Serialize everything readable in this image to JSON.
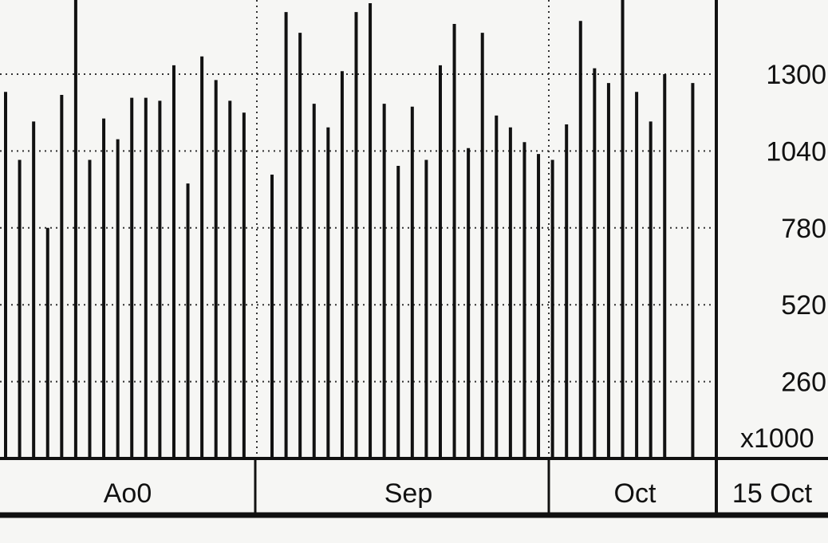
{
  "chart_data": {
    "type": "bar",
    "ylim": [
      0,
      1560
    ],
    "yticks": [
      {
        "value": 1300,
        "label": "1300"
      },
      {
        "value": 1040,
        "label": "1040"
      },
      {
        "value": 780,
        "label": "780"
      },
      {
        "value": 520,
        "label": "520"
      },
      {
        "value": 260,
        "label": "260"
      }
    ],
    "unit_label": "x1000",
    "values": [
      1240,
      1010,
      1140,
      780,
      1230,
      1560,
      1010,
      1150,
      1080,
      1220,
      1220,
      1210,
      1330,
      930,
      1360,
      1280,
      1210,
      1170,
      0,
      960,
      1510,
      1440,
      1200,
      1120,
      1310,
      1510,
      1540,
      1200,
      990,
      1190,
      1010,
      1330,
      1470,
      1050,
      1440,
      1160,
      1120,
      1070,
      1030,
      1010,
      1130,
      1480,
      1320,
      1270,
      1560,
      1240,
      1140,
      1300,
      0,
      1270
    ],
    "months": [
      {
        "label": "Ao0"
      },
      {
        "label": "Sep"
      },
      {
        "label": "Oct"
      },
      {
        "label": "15 Oct"
      }
    ],
    "grid": true,
    "color": "#111111"
  }
}
